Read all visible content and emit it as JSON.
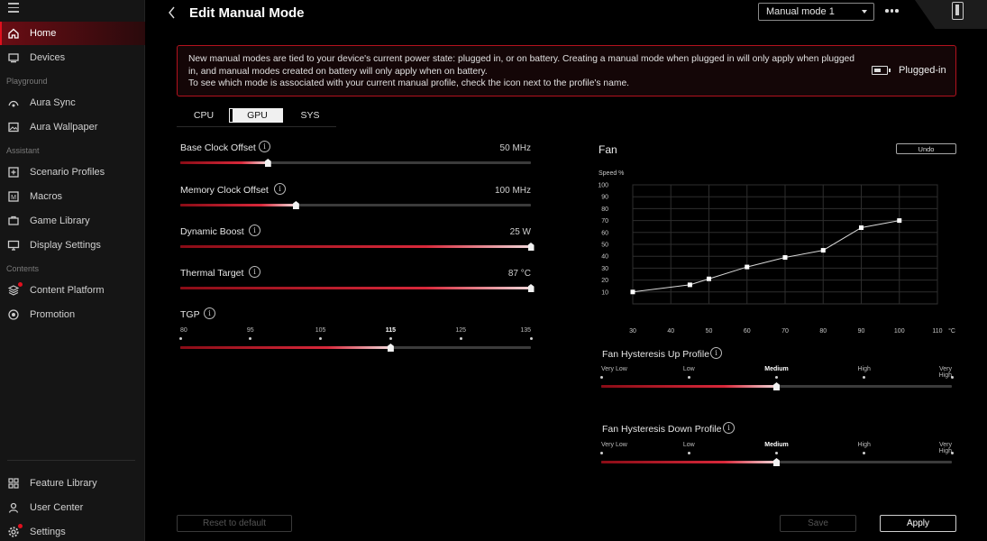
{
  "sidebar": {
    "items": [
      {
        "id": "home",
        "label": "Home",
        "icon": "home-icon",
        "active": true
      },
      {
        "id": "devices",
        "label": "Devices",
        "icon": "devices-icon"
      },
      {
        "id": "aura-sync",
        "label": "Aura Sync",
        "icon": "aura-sync-icon"
      },
      {
        "id": "aura-wallpaper",
        "label": "Aura Wallpaper",
        "icon": "wallpaper-icon"
      },
      {
        "id": "scenario-profiles",
        "label": "Scenario Profiles",
        "icon": "scenario-profiles-icon"
      },
      {
        "id": "macros",
        "label": "Macros",
        "icon": "macros-icon"
      },
      {
        "id": "game-library",
        "label": "Game Library",
        "icon": "game-library-icon"
      },
      {
        "id": "display-settings",
        "label": "Display Settings",
        "icon": "display-settings-icon"
      },
      {
        "id": "content-platform",
        "label": "Content Platform",
        "icon": "content-platform-icon",
        "badge": true
      },
      {
        "id": "promotion",
        "label": "Promotion",
        "icon": "promotion-icon"
      },
      {
        "id": "feature-library",
        "label": "Feature Library",
        "icon": "feature-library-icon"
      },
      {
        "id": "user-center",
        "label": "User Center",
        "icon": "user-icon"
      },
      {
        "id": "settings",
        "label": "Settings",
        "icon": "gear-icon",
        "badge": true
      }
    ],
    "sections": {
      "playground": "Playground",
      "assistant": "Assistant",
      "contents": "Contents"
    }
  },
  "header": {
    "title": "Edit Manual Mode",
    "mode_select": "Manual mode 1"
  },
  "notice": {
    "line1": "New manual modes are tied to your device's current power state: plugged in, or on battery. Creating a manual mode when plugged in will only apply when plugged",
    "line2": "in, and manual modes created on battery will only apply when on battery.",
    "line3": "To see which mode is associated with your current manual profile, check the icon next to the profile's name.",
    "power_state": "Plugged-in"
  },
  "tabs": [
    {
      "label": "CPU",
      "active": false
    },
    {
      "label": "GPU",
      "active": true
    },
    {
      "label": "SYS",
      "active": false
    }
  ],
  "sliders": {
    "base_clock": {
      "label": "Base Clock Offset",
      "value": "50 MHz",
      "fraction": 0.25
    },
    "memory_clock": {
      "label": "Memory Clock Offset",
      "value": "100 MHz",
      "fraction": 0.33
    },
    "dynamic_boost": {
      "label": "Dynamic Boost",
      "value": "25 W",
      "fraction": 1.0
    },
    "thermal_target": {
      "label": "Thermal Target",
      "value": "87 °C",
      "fraction": 1.0
    },
    "tgp": {
      "label": "TGP",
      "ticks": [
        "80",
        "95",
        "105",
        "115",
        "125",
        "135"
      ],
      "selected_index": 3
    }
  },
  "fan": {
    "title": "Fan",
    "undo_label": "Undo",
    "hysteresis_up": {
      "label": "Fan Hysteresis Up Profile",
      "ticks": [
        "Very Low",
        "Low",
        "Medium",
        "High",
        "Very High"
      ],
      "selected_index": 2
    },
    "hysteresis_down": {
      "label": "Fan Hysteresis Down Profile",
      "ticks": [
        "Very Low",
        "Low",
        "Medium",
        "High",
        "Very High"
      ],
      "selected_index": 2
    }
  },
  "chart_data": {
    "type": "line",
    "ylabel": "Speed %",
    "xunit": "°C",
    "xlim": [
      30,
      110
    ],
    "ylim": [
      0,
      100
    ],
    "xticks": [
      30,
      40,
      50,
      60,
      70,
      80,
      90,
      100,
      110
    ],
    "yticks": [
      10,
      20,
      30,
      40,
      50,
      60,
      70,
      80,
      90,
      100
    ],
    "grid": true,
    "x": [
      30,
      45,
      50,
      60,
      70,
      80,
      90,
      100
    ],
    "y": [
      10,
      16,
      21,
      31,
      39,
      45,
      64,
      70
    ]
  },
  "footer": {
    "reset_label": "Reset to default",
    "save_label": "Save",
    "apply_label": "Apply"
  },
  "colors": {
    "accent": "#e0101e",
    "background": "#000000",
    "sidebar": "#151515"
  }
}
